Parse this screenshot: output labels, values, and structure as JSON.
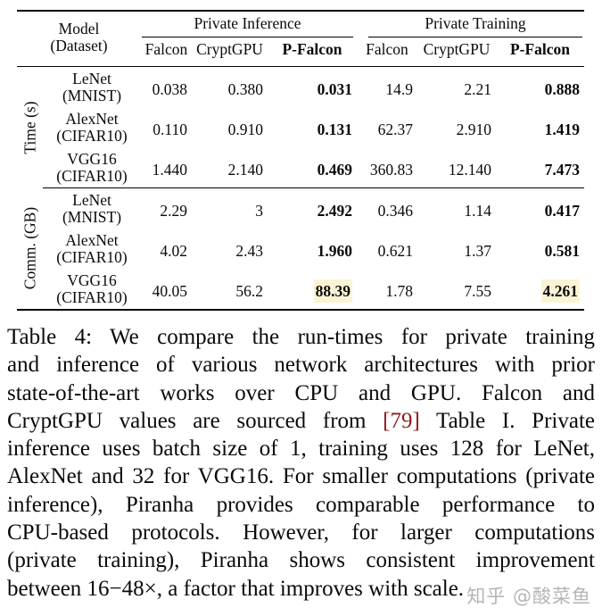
{
  "table": {
    "model_header": {
      "line1": "Model",
      "line2": "(Dataset)"
    },
    "group_headers": [
      "Private Inference",
      "Private Training"
    ],
    "column_headers": [
      "Falcon",
      "CryptGPU",
      "P-Falcon",
      "Falcon",
      "CryptGPU",
      "P-Falcon"
    ],
    "bold_column_indexes": [
      2,
      5
    ],
    "sections": [
      {
        "label": "Time (s)",
        "rows": [
          {
            "model_line1": "LeNet",
            "model_line2": "(MNIST)",
            "values": [
              "0.038",
              "0.380",
              "0.031",
              "14.9",
              "2.21",
              "0.888"
            ],
            "highlight": []
          },
          {
            "model_line1": "AlexNet",
            "model_line2": "(CIFAR10)",
            "values": [
              "0.110",
              "0.910",
              "0.131",
              "62.37",
              "2.910",
              "1.419"
            ],
            "highlight": []
          },
          {
            "model_line1": "VGG16",
            "model_line2": "(CIFAR10)",
            "values": [
              "1.440",
              "2.140",
              "0.469",
              "360.83",
              "12.140",
              "7.473"
            ],
            "highlight": []
          }
        ]
      },
      {
        "label": "Comm. (GB)",
        "rows": [
          {
            "model_line1": "LeNet",
            "model_line2": "(MNIST)",
            "values": [
              "2.29",
              "3",
              "2.492",
              "0.346",
              "1.14",
              "0.417"
            ],
            "highlight": []
          },
          {
            "model_line1": "AlexNet",
            "model_line2": "(CIFAR10)",
            "values": [
              "4.02",
              "2.43",
              "1.960",
              "0.621",
              "1.37",
              "0.581"
            ],
            "highlight": []
          },
          {
            "model_line1": "VGG16",
            "model_line2": "(CIFAR10)",
            "values": [
              "40.05",
              "56.2",
              "88.39",
              "1.78",
              "7.55",
              "4.261"
            ],
            "highlight": [
              2,
              5
            ]
          }
        ]
      }
    ]
  },
  "caption": {
    "lines": [
      "Table 4: We compare the run-times for private training",
      "and inference of various network architectures with prior",
      "state-of-the-art works over CPU and GPU. Falcon and",
      "CryptGPU values are sourced from [79] Table I. Private",
      "inference uses batch size of 1, training uses 128 for LeNet,",
      "AlexNet and 32 for VGG16. For smaller computations (private",
      "inference), Piranha provides comparable performance to",
      "CPU-based protocols. However, for larger computations",
      "(private training), Piranha shows consistent improvement",
      "between 16−48×, a factor that improves with scale."
    ],
    "citation": "[79]"
  },
  "watermark": {
    "text": "知乎 @酸菜鱼"
  },
  "colors": {
    "highlight_background": "#faf4d5",
    "citation_red": "#8b1a1a",
    "watermark_gray": "#b5b5b5",
    "text_black": "#0a0a0a"
  }
}
